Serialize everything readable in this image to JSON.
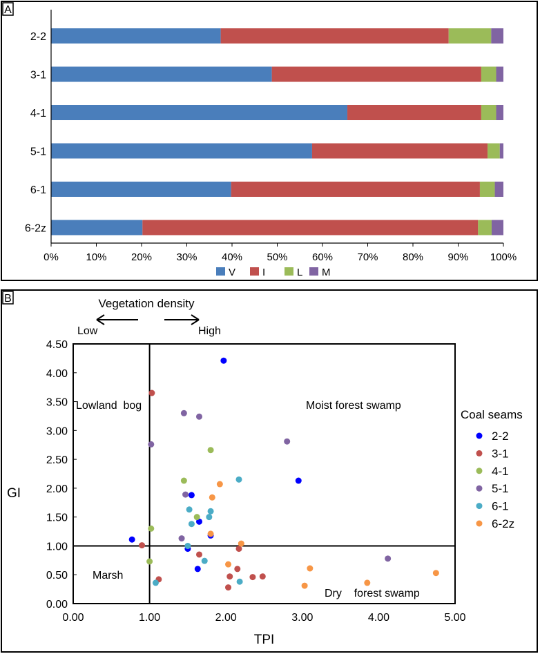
{
  "panel_a": {
    "label": "A",
    "chart_data": {
      "type": "bar",
      "orientation": "horizontal-stacked-100",
      "categories": [
        "2-2",
        "3-1",
        "4-1",
        "5-1",
        "6-1",
        "6-2z"
      ],
      "series": [
        {
          "name": "V",
          "color": "#4a7ebb",
          "values": [
            37.5,
            48.8,
            65.5,
            57.7,
            39.8,
            20.2
          ]
        },
        {
          "name": "I",
          "color": "#c0504d",
          "values": [
            50.4,
            46.3,
            29.6,
            38.8,
            55.0,
            74.2
          ]
        },
        {
          "name": "L",
          "color": "#9bbb59",
          "values": [
            9.4,
            3.3,
            3.3,
            2.7,
            3.3,
            3.0
          ]
        },
        {
          "name": "M",
          "color": "#8064a2",
          "values": [
            2.7,
            1.6,
            1.6,
            0.8,
            1.9,
            2.6
          ]
        }
      ],
      "xlim": [
        0,
        100
      ],
      "xticks": [
        "0%",
        "10%",
        "20%",
        "30%",
        "40%",
        "50%",
        "60%",
        "70%",
        "80%",
        "90%",
        "100%"
      ],
      "legend": "bottom"
    }
  },
  "panel_b": {
    "label": "B",
    "vegetation_label": "Vegetation  density",
    "low_label": "Low",
    "high_label": "High",
    "chart_data": {
      "type": "scatter",
      "xlabel": "TPI",
      "ylabel": "GI",
      "xlim": [
        0,
        5
      ],
      "ylim": [
        0,
        4.5
      ],
      "xticks": [
        "0.00",
        "1.00",
        "2.00",
        "3.00",
        "4.00",
        "5.00"
      ],
      "yticks": [
        "0.00",
        "0.50",
        "1.00",
        "1.50",
        "2.00",
        "2.50",
        "3.00",
        "3.50",
        "4.00",
        "4.50"
      ],
      "divider_x": 1.0,
      "divider_y": 1.0,
      "annotations": [
        "Lowland  bog",
        "Moist forest swamp",
        "Marsh",
        "Dry    forest swamp"
      ],
      "legend_title": "Coal seams",
      "series": [
        {
          "name": "2-2",
          "color": "#0000ff",
          "points": [
            [
              1.97,
              4.21
            ],
            [
              2.95,
              2.13
            ],
            [
              1.55,
              1.88
            ],
            [
              1.65,
              1.42
            ],
            [
              1.8,
              1.18
            ],
            [
              0.77,
              1.11
            ],
            [
              1.5,
              0.95
            ],
            [
              1.63,
              0.6
            ]
          ]
        },
        {
          "name": "3-1",
          "color": "#c0504d",
          "points": [
            [
              1.03,
              3.65
            ],
            [
              0.9,
              1.01
            ],
            [
              1.65,
              0.85
            ],
            [
              2.17,
              0.95
            ],
            [
              2.15,
              0.6
            ],
            [
              2.05,
              0.47
            ],
            [
              2.35,
              0.46
            ],
            [
              2.48,
              0.47
            ],
            [
              2.03,
              0.28
            ],
            [
              1.12,
              0.42
            ]
          ]
        },
        {
          "name": "4-1",
          "color": "#9bbb59",
          "points": [
            [
              1.8,
              2.66
            ],
            [
              1.45,
              2.13
            ],
            [
              1.62,
              1.5
            ],
            [
              1.02,
              1.3
            ],
            [
              1.0,
              0.73
            ]
          ]
        },
        {
          "name": "5-1",
          "color": "#8064a2",
          "points": [
            [
              1.45,
              3.3
            ],
            [
              1.65,
              3.24
            ],
            [
              1.02,
              2.76
            ],
            [
              2.8,
              2.81
            ],
            [
              1.47,
              1.89
            ],
            [
              1.42,
              1.13
            ],
            [
              4.12,
              0.78
            ]
          ]
        },
        {
          "name": "6-1",
          "color": "#4bacc6",
          "points": [
            [
              2.17,
              2.15
            ],
            [
              1.8,
              1.6
            ],
            [
              1.52,
              1.63
            ],
            [
              1.78,
              1.5
            ],
            [
              1.55,
              1.38
            ],
            [
              1.5,
              1.0
            ],
            [
              1.72,
              0.74
            ],
            [
              2.18,
              0.38
            ],
            [
              1.08,
              0.36
            ]
          ]
        },
        {
          "name": "6-2z",
          "color": "#f79646",
          "points": [
            [
              1.92,
              2.07
            ],
            [
              1.82,
              1.84
            ],
            [
              1.8,
              1.21
            ],
            [
              2.2,
              1.04
            ],
            [
              2.03,
              0.68
            ],
            [
              3.1,
              0.61
            ],
            [
              3.03,
              0.31
            ],
            [
              3.85,
              0.36
            ],
            [
              4.75,
              0.53
            ]
          ]
        }
      ]
    }
  }
}
